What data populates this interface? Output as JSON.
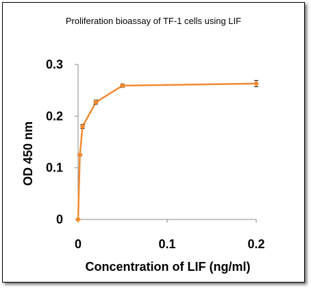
{
  "chart_data": {
    "type": "line",
    "title": "Proliferation bioassay of TF-1 cells using LIF",
    "xlabel": "Concentration of LIF (ng/ml)",
    "ylabel": "OD  450 nm",
    "xlim": [
      0,
      0.2
    ],
    "ylim": [
      0,
      0.3
    ],
    "xticks": [
      0,
      0.1,
      0.2
    ],
    "yticks": [
      0,
      0.1,
      0.2,
      0.3
    ],
    "xtick_labels": [
      "0",
      "0.1",
      "0.2"
    ],
    "ytick_labels": [
      "0",
      "0.1",
      "0.2",
      "0.3"
    ],
    "grid": false,
    "legend": "none",
    "series": [
      {
        "color": "#F28A30",
        "x": [
          0,
          0.002,
          0.005,
          0.02,
          0.05,
          0.2
        ],
        "y": [
          0,
          0.125,
          0.18,
          0.227,
          0.259,
          0.263
        ],
        "err": [
          0,
          0.002,
          0.004,
          0.004,
          0.003,
          0.006
        ]
      }
    ]
  }
}
